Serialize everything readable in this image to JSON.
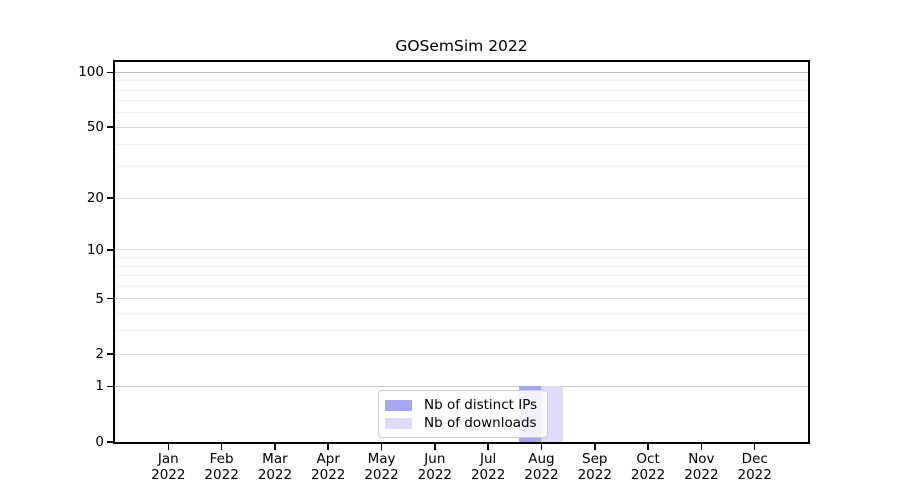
{
  "chart_data": {
    "type": "bar",
    "title": "GOSemSim 2022",
    "categories": [
      "Jan 2022",
      "Feb 2022",
      "Mar 2022",
      "Apr 2022",
      "May 2022",
      "Jun 2022",
      "Jul 2022",
      "Aug 2022",
      "Sep 2022",
      "Oct 2022",
      "Nov 2022",
      "Dec 2022"
    ],
    "series": [
      {
        "name": "Nb of distinct IPs",
        "color": "#a7a7f0",
        "values": [
          0,
          0,
          0,
          0,
          0,
          0,
          0,
          1,
          0,
          0,
          0,
          0
        ]
      },
      {
        "name": "Nb of downloads",
        "color": "#dcdcf8",
        "values": [
          0,
          0,
          0,
          0,
          0,
          0,
          0,
          1,
          0,
          0,
          0,
          0
        ]
      }
    ],
    "y_axis": {
      "ticks": [
        0,
        1,
        2,
        5,
        10,
        20,
        50,
        100
      ],
      "minor_gridlines": [
        3,
        4,
        6,
        7,
        8,
        9,
        30,
        40,
        60,
        70,
        80,
        90
      ],
      "scale": "log10(1+value)",
      "max": 114
    },
    "x_axis": {
      "label_line_2": "2022"
    },
    "legend": {
      "position": "bottom-center",
      "labels": [
        "Nb of distinct IPs",
        "Nb of downloads"
      ]
    },
    "grid": true
  },
  "style": {
    "background": "#ffffff",
    "axis_color": "#000000",
    "text_color": "#000000",
    "grid_strong_color": "#c6c6c6",
    "grid_major_color": "#dbdbdb",
    "grid_minor_color": "#f0f0f0",
    "legend_border_color": "#cccccc",
    "legend_background": "#ffffff",
    "bar_distinct_ips_color": "#a7a7f0",
    "bar_downloads_color": "#dcdcf8"
  }
}
